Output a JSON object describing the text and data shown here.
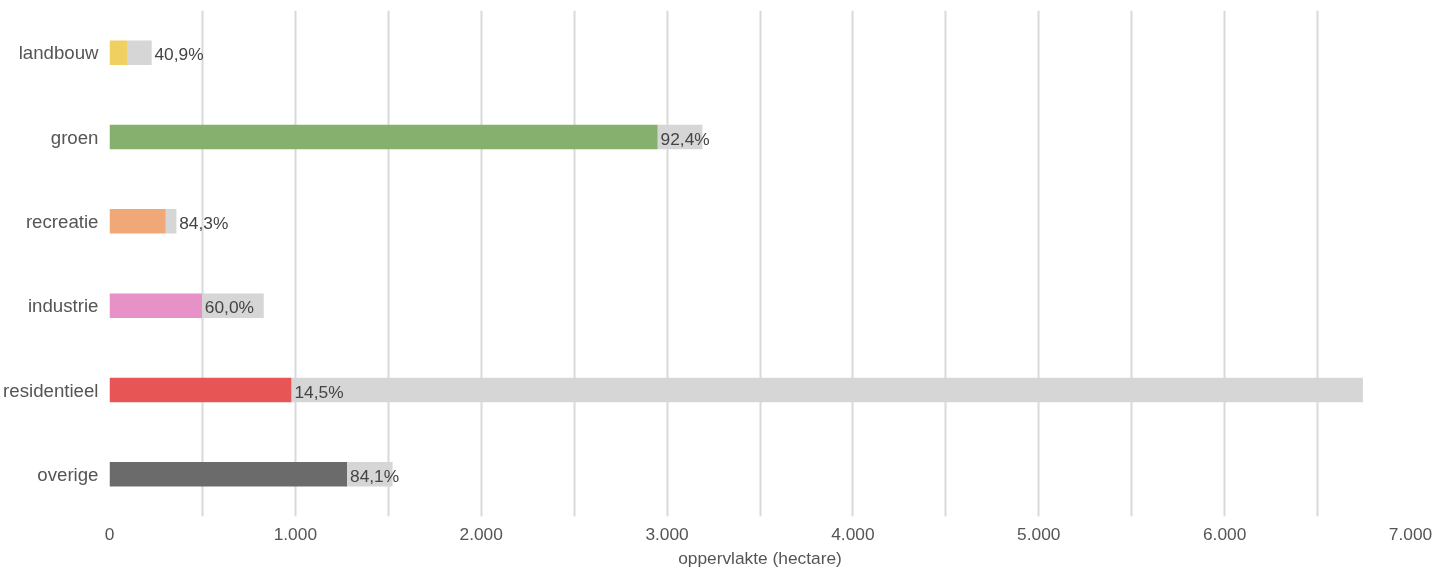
{
  "chart_data": {
    "type": "bar",
    "orientation": "horizontal",
    "stacked": true,
    "categories": [
      "landbouw",
      "groen",
      "recreatie",
      "industrie",
      "residentieel",
      "overige"
    ],
    "series": [
      {
        "colors": [
          "#f0d060",
          "#86b06e",
          "#f0a878",
          "#e890c8",
          "#e85555",
          "#6b6b6b"
        ],
        "values": [
          94,
          2950,
          303,
          498,
          980,
          1279
        ]
      },
      {
        "color": "#d6d6d6",
        "values": [
          133,
          240,
          57,
          332,
          5764,
          244
        ]
      }
    ],
    "annotations": [
      {
        "text": "40,9%",
        "x": 227,
        "y": "landbouw"
      },
      {
        "text": "92,4%",
        "x": 2950,
        "y": "groen"
      },
      {
        "text": "84,3%",
        "x": 360,
        "y": "recreatie"
      },
      {
        "text": "60,0%",
        "x": 498,
        "y": "industrie"
      },
      {
        "text": "14,5%",
        "x": 980,
        "y": "residentieel"
      },
      {
        "text": "84,1%",
        "x": 1279,
        "y": "overige"
      }
    ],
    "xlabel": "oppervlakte (hectare)",
    "xlim": [
      0,
      7000
    ],
    "xticks": [
      0,
      {
        "value": 500,
        "label": null
      },
      {
        "value": 1000,
        "label": "1.000"
      },
      {
        "value": 1500,
        "label": null
      },
      {
        "value": 2000,
        "label": "2.000"
      },
      {
        "value": 2500,
        "label": null
      },
      {
        "value": 3000,
        "label": "3.000"
      },
      {
        "value": 3500,
        "label": null
      },
      {
        "value": 4000,
        "label": "4.000"
      },
      {
        "value": 4500,
        "label": null
      },
      {
        "value": 5000,
        "label": "5.000"
      },
      {
        "value": 5500,
        "label": null
      },
      {
        "value": 6000,
        "label": "6.000"
      },
      {
        "value": 6500,
        "label": null
      },
      {
        "value": 7000,
        "label": "7.000"
      }
    ],
    "grid": "x"
  }
}
